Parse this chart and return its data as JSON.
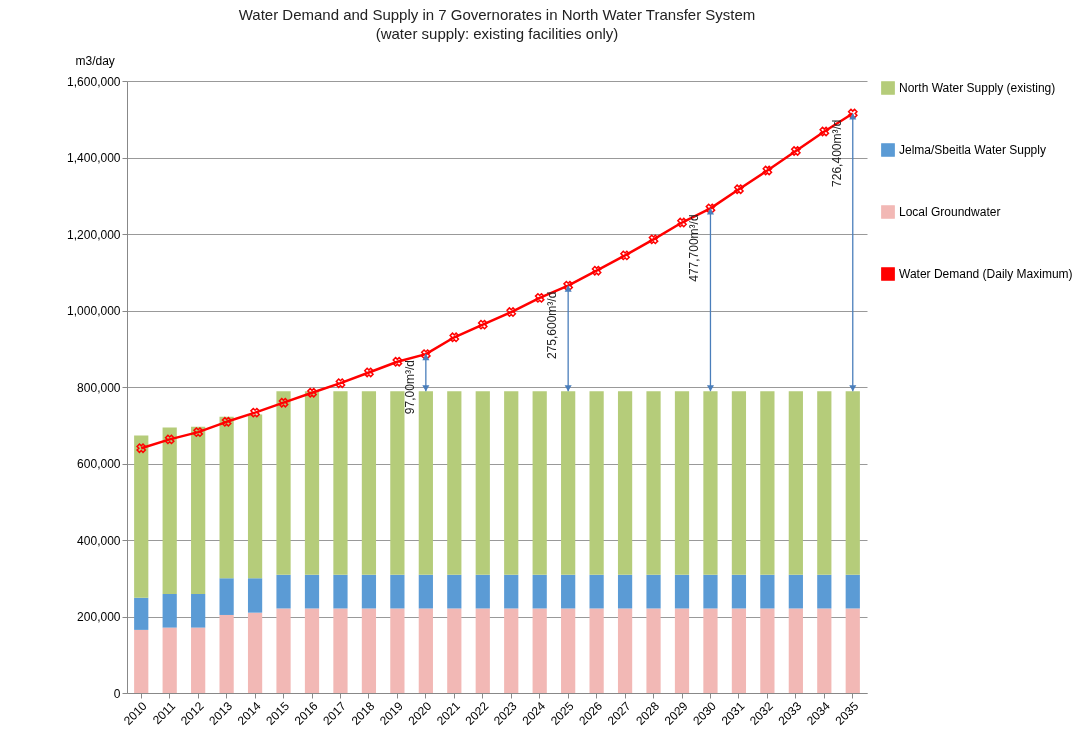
{
  "chart_data": {
    "type": "bar",
    "title": "Water Demand and Supply in 7 Governorates in North Water Transfer System",
    "subtitle": "(water supply: existing facilities only)",
    "ylabel": "m3/day",
    "categories": [
      "2010",
      "2011",
      "2012",
      "2013",
      "2014",
      "2015",
      "2016",
      "2017",
      "2018",
      "2019",
      "2020",
      "2021",
      "2022",
      "2023",
      "2024",
      "2025",
      "2026",
      "2027",
      "2028",
      "2029",
      "2030",
      "2031",
      "2032",
      "2033",
      "2034",
      "2035"
    ],
    "stacked": true,
    "ylim": [
      0,
      1600000
    ],
    "yticks": [
      0,
      {
        "value": 200000,
        "label": "200,000"
      },
      {
        "value": 400000,
        "label": "400,000"
      },
      {
        "value": 600000,
        "label": "600,000"
      },
      {
        "value": 800000,
        "label": "800,000"
      },
      {
        "value": 1000000,
        "label": "1,000,000"
      },
      {
        "value": 1200000,
        "label": "1,200,000"
      },
      {
        "value": 1400000,
        "label": "1,400,000"
      },
      {
        "value": 1600000,
        "label": "1,600,000"
      }
    ],
    "grid": "y",
    "legend": "right",
    "series": [
      {
        "name": "Local Groundwater",
        "color": "#f2b8b5",
        "values": [
          165000,
          171000,
          171000,
          204000,
          210000,
          221000,
          221000,
          221000,
          221000,
          221000,
          221000,
          221000,
          221000,
          221000,
          221000,
          221000,
          221000,
          221000,
          221000,
          221000,
          221000,
          221000,
          221000,
          221000,
          221000,
          221000
        ]
      },
      {
        "name": "Jelma/Sbeitla Water Supply",
        "color": "#5b9bd5",
        "values": [
          84000,
          88000,
          88000,
          96000,
          90000,
          88000,
          88000,
          88000,
          88000,
          88000,
          88000,
          88000,
          88000,
          88000,
          88000,
          88000,
          88000,
          88000,
          88000,
          88000,
          88000,
          88000,
          88000,
          88000,
          88000,
          88000
        ]
      },
      {
        "name": "North Water Supply (existing)",
        "color": "#b5cc7a",
        "values": [
          424000,
          435000,
          437000,
          422000,
          428000,
          480000,
          480000,
          480000,
          480000,
          480000,
          480000,
          480000,
          480000,
          480000,
          480000,
          480000,
          480000,
          480000,
          480000,
          480000,
          480000,
          480000,
          480000,
          480000,
          480000,
          480000
        ]
      },
      {
        "name": "Water Demand (Daily Maximum)",
        "type": "line",
        "color": "#ff0000",
        "marker": "cross",
        "values": [
          640000,
          663000,
          682000,
          709000,
          733000,
          759000,
          785000,
          810000,
          838000,
          866000,
          886000,
          930000,
          963000,
          996000,
          1033000,
          1065000,
          1104000,
          1144000,
          1186000,
          1230000,
          1267000,
          1317000,
          1366000,
          1417000,
          1468000,
          1515000
        ]
      }
    ],
    "annotations": [
      {
        "text": "97,00m³/d",
        "x": "2020",
        "y": 886000
      },
      {
        "text": "275,600m³/d",
        "x": "2025",
        "y": 1065000
      },
      {
        "text": "477,700m³/d",
        "x": "2030",
        "y": 1267000
      },
      {
        "text": "726,400m³/d",
        "x": "2035",
        "y": 1515000
      }
    ]
  }
}
